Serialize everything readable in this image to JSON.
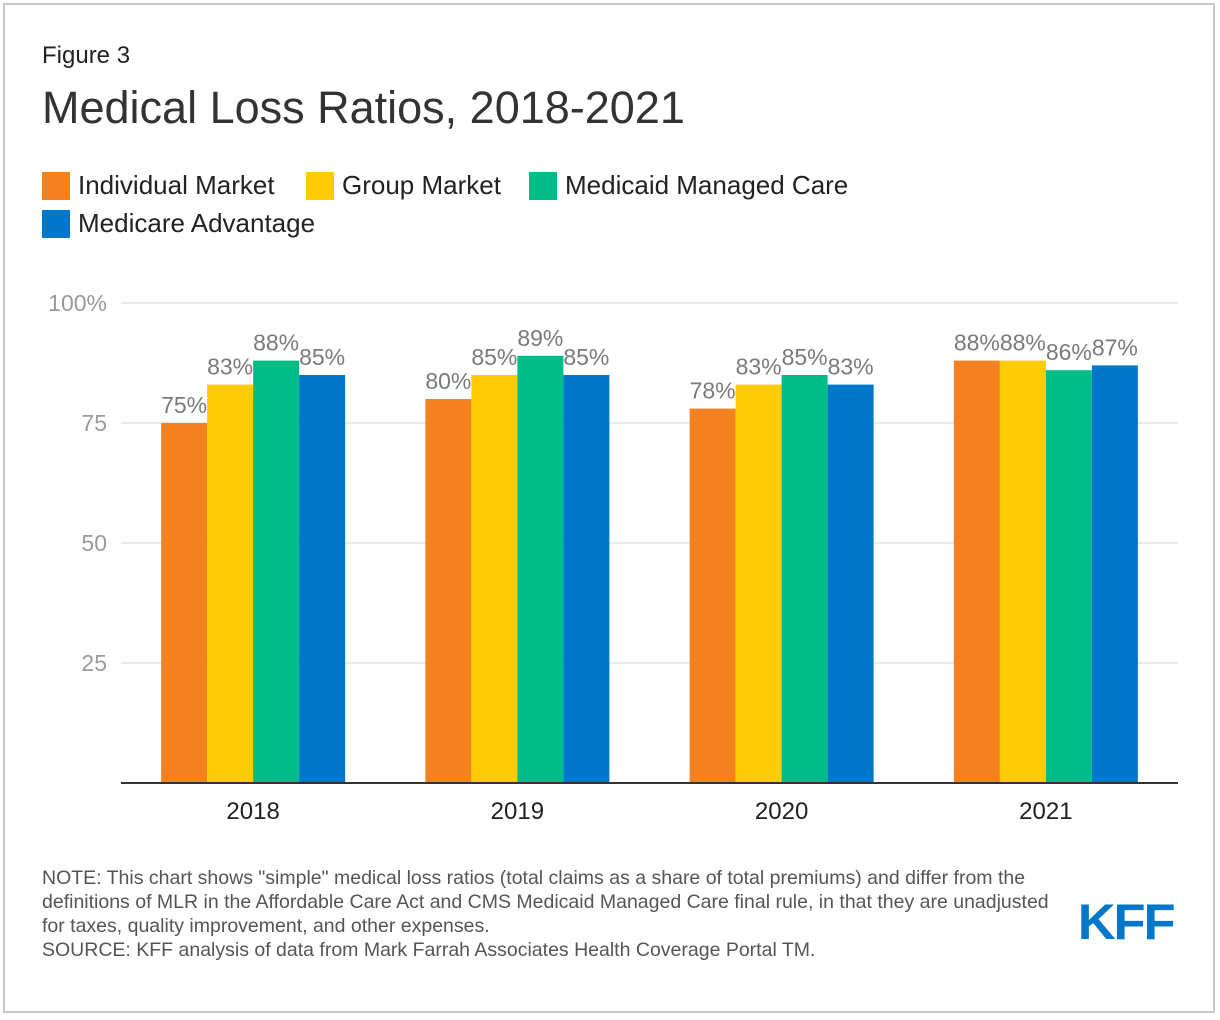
{
  "figure_label": "Figure 3",
  "title": "Medical Loss Ratios, 2018-2021",
  "legend": [
    {
      "name": "Individual Market",
      "color": "#f58220"
    },
    {
      "name": "Group Market",
      "color": "#ffcb05"
    },
    {
      "name": "Medicaid Managed Care",
      "color": "#00bc87"
    },
    {
      "name": "Medicare Advantage",
      "color": "#0077c8"
    }
  ],
  "chart_data": {
    "type": "bar",
    "categories": [
      "2018",
      "2019",
      "2020",
      "2021"
    ],
    "series": [
      {
        "name": "Individual Market",
        "color": "#f58220",
        "values": [
          75,
          80,
          78,
          88
        ],
        "labels": [
          "75%",
          "80%",
          "78%",
          "88%"
        ]
      },
      {
        "name": "Group Market",
        "color": "#ffcb05",
        "values": [
          83,
          85,
          83,
          88
        ],
        "labels": [
          "83%",
          "85%",
          "83%",
          "88%"
        ]
      },
      {
        "name": "Medicaid Managed Care",
        "color": "#00bc87",
        "values": [
          88,
          89,
          85,
          86
        ],
        "labels": [
          "88%",
          "89%",
          "85%",
          "86%"
        ]
      },
      {
        "name": "Medicare Advantage",
        "color": "#0077c8",
        "values": [
          85,
          85,
          83,
          87
        ],
        "labels": [
          "85%",
          "85%",
          "83%",
          "87%"
        ]
      }
    ],
    "y_ticks": [
      {
        "value": 100,
        "label": "100%"
      },
      {
        "value": 75,
        "label": "75"
      },
      {
        "value": 50,
        "label": "50"
      },
      {
        "value": 25,
        "label": "25"
      }
    ],
    "ylim": [
      0,
      100
    ],
    "grid": true,
    "legend_position": "top-left"
  },
  "note": "NOTE: This chart shows \"simple\" medical loss ratios (total claims as a share of total premiums) and differ from the definitions of MLR in the Affordable Care Act and CMS Medicaid Managed Care final rule, in that they are unadjusted for taxes, quality improvement, and other expenses.",
  "source": "SOURCE: KFF analysis of data from Mark Farrah Associates Health Coverage Portal TM.",
  "logo_text": "KFF"
}
